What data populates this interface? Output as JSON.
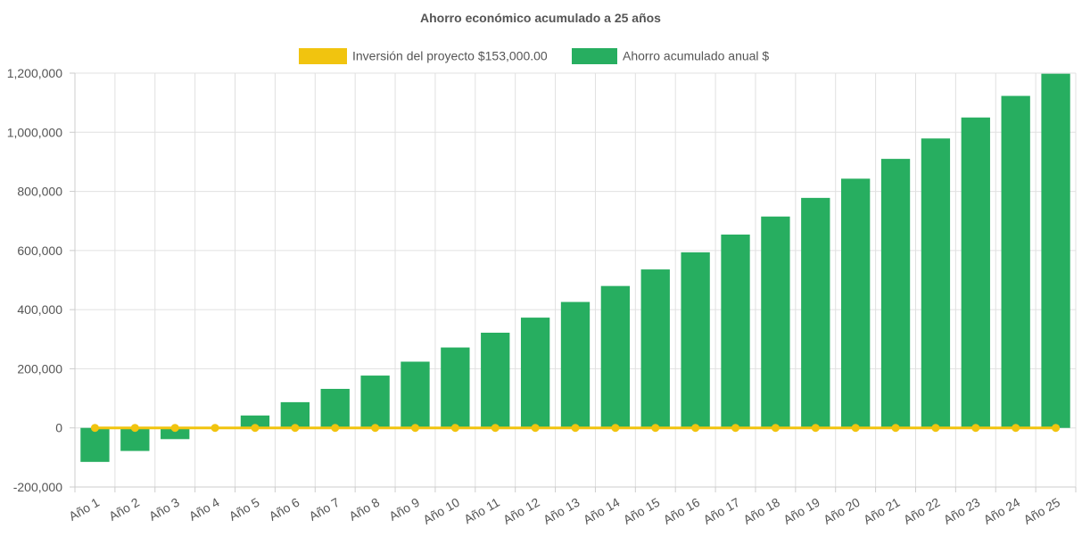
{
  "chart_data": {
    "type": "bar",
    "title": "Ahorro económico acumulado a 25 años",
    "categories": [
      "Año 1",
      "Año 2",
      "Año 3",
      "Año 4",
      "Año 5",
      "Año 6",
      "Año 7",
      "Año 8",
      "Año 9",
      "Año 10",
      "Año 11",
      "Año 12",
      "Año 13",
      "Año 14",
      "Año 15",
      "Año 16",
      "Año 17",
      "Año 18",
      "Año 19",
      "Año 20",
      "Año 21",
      "Año 22",
      "Año 23",
      "Año 24",
      "Año 25"
    ],
    "ylim": [
      -200000,
      1200000
    ],
    "yticks": [
      -200000,
      0,
      200000,
      400000,
      600000,
      800000,
      1000000,
      1200000
    ],
    "ytick_labels": [
      "-200,000",
      "0",
      "200,000",
      "400,000",
      "600,000",
      "800,000",
      "1,000,000",
      "1,200,000"
    ],
    "grid": true,
    "legend_position": "top",
    "series": [
      {
        "name": "Inversión del proyecto $153,000.00",
        "kind": "line",
        "color": "#f1c40f",
        "values": [
          0,
          0,
          0,
          0,
          0,
          0,
          0,
          0,
          0,
          0,
          0,
          0,
          0,
          0,
          0,
          0,
          0,
          0,
          0,
          0,
          0,
          0,
          0,
          0,
          0
        ]
      },
      {
        "name": "Ahorro acumulado anual $",
        "kind": "bar",
        "color": "#27ae60",
        "values": [
          -115000,
          -78000,
          -38000,
          0,
          42000,
          87000,
          132000,
          177000,
          224000,
          272000,
          322000,
          373000,
          426000,
          480000,
          536000,
          594000,
          654000,
          715000,
          778000,
          843000,
          910000,
          979000,
          1050000,
          1123000,
          1198000
        ]
      }
    ]
  }
}
